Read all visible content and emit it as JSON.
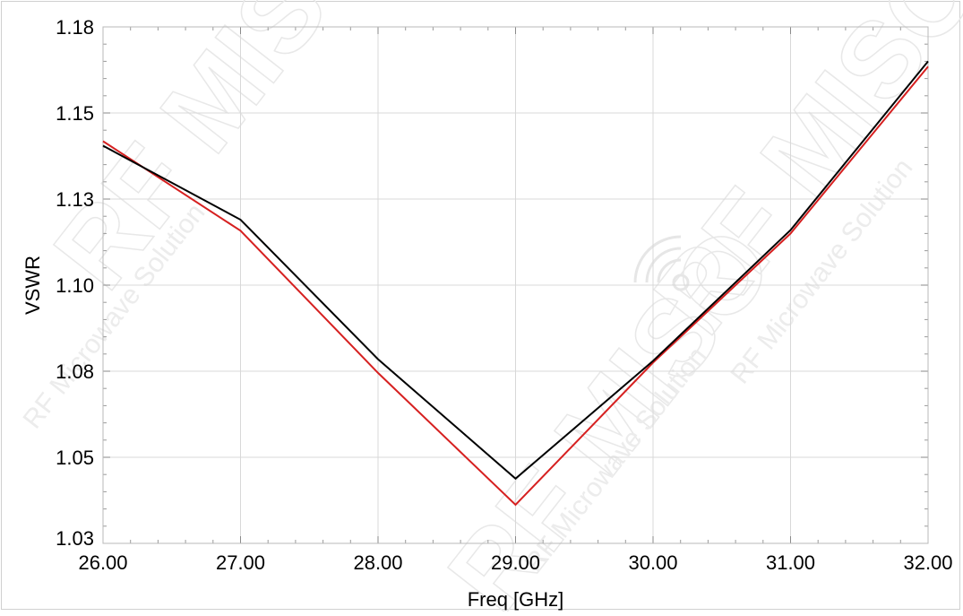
{
  "chart_data": {
    "type": "line",
    "xlabel": "Freq [GHz]",
    "ylabel": "VSWR",
    "xlim": [
      26.0,
      32.0
    ],
    "ylim": [
      1.025,
      1.175
    ],
    "x_ticks": [
      26.0,
      27.0,
      28.0,
      29.0,
      30.0,
      31.0,
      32.0
    ],
    "x_tick_labels": [
      "26.00",
      "27.00",
      "28.00",
      "29.00",
      "30.00",
      "31.00",
      "32.00"
    ],
    "y_ticks": [
      1.025,
      1.05,
      1.075,
      1.1,
      1.125,
      1.15,
      1.175
    ],
    "y_tick_labels": [
      "1.03",
      "1.05",
      "1.08",
      "1.10",
      "1.13",
      "1.15",
      "1.18"
    ],
    "grid": true,
    "legend": "none",
    "x": [
      26.0,
      27.0,
      28.0,
      29.0,
      30.0,
      31.0,
      32.0
    ],
    "series": [
      {
        "color": "#d62020",
        "values": [
          1.1418,
          1.1158,
          1.0745,
          1.0362,
          1.0775,
          1.115,
          1.1635
        ]
      },
      {
        "color": "#000000",
        "values": [
          1.1405,
          1.119,
          1.0785,
          1.0438,
          1.078,
          1.116,
          1.165
        ]
      }
    ],
    "watermark": {
      "main_text": "RF MISO",
      "sub_text": "RF Microwave Solution"
    }
  }
}
